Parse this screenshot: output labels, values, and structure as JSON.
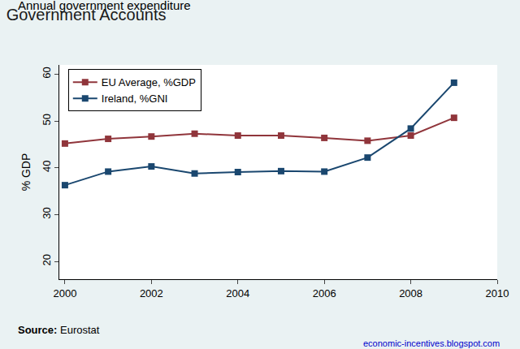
{
  "chart_data": {
    "type": "line",
    "title": "Government Accounts",
    "subtitle": "Annual government expenditure",
    "y_label": "% GDP",
    "annotations": [
      "Source: Eurostat",
      "economic-incentives.blogspot.com"
    ],
    "x": [
      2000,
      2001,
      2002,
      2003,
      2004,
      2005,
      2006,
      2007,
      2008,
      2009
    ],
    "series": [
      {
        "name": "EU Average, %GDP",
        "color": "#90353b",
        "marker": "square",
        "values": [
          45.2,
          46.2,
          46.7,
          47.3,
          46.9,
          46.9,
          46.4,
          45.8,
          46.9,
          50.7
        ]
      },
      {
        "name": "Ireland, %GNI",
        "color": "#1a476f",
        "marker": "square",
        "values": [
          36.3,
          39.2,
          40.3,
          38.8,
          39.1,
          39.3,
          39.2,
          42.2,
          48.4,
          58.2
        ]
      }
    ],
    "xlim": [
      1999.87,
      2010
    ],
    "xticks": [
      2000,
      2002,
      2004,
      2006,
      2008,
      2010
    ],
    "ylim": [
      16.2,
      62
    ],
    "yticks": [
      20,
      30,
      40,
      50,
      60
    ],
    "grid": false,
    "legend": "top-left"
  }
}
